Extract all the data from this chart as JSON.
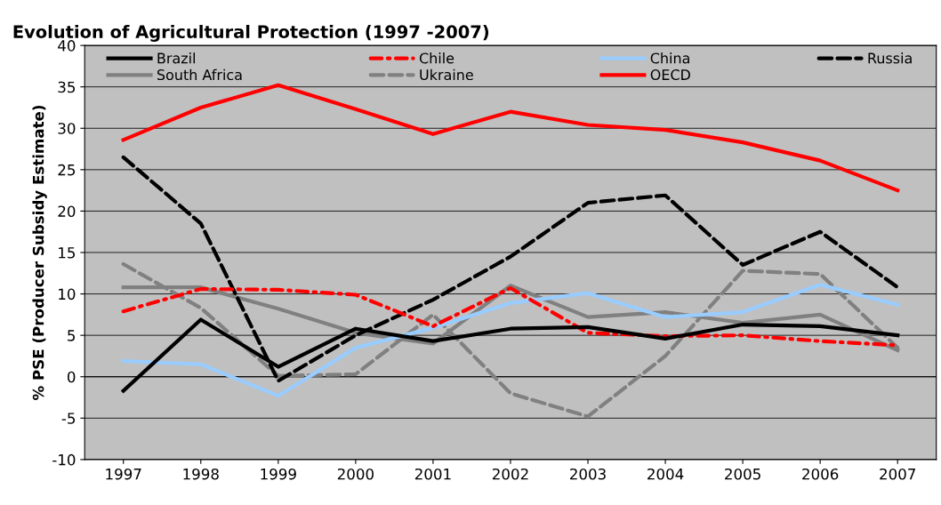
{
  "chart_data": {
    "type": "line",
    "title": "Evolution of Agricultural Protection (1997 -2007)",
    "ylabel": "% PSE (Producer Subsidy Estimate)",
    "categories": [
      "1997",
      "1998",
      "1999",
      "2000",
      "2001",
      "2002",
      "2003",
      "2004",
      "2005",
      "2006",
      "2007"
    ],
    "series": [
      {
        "name": "Brazil",
        "color": "#000000",
        "line_style": "solid",
        "values": [
          -1.7,
          6.9,
          1.2,
          5.8,
          4.3,
          5.8,
          6.0,
          4.6,
          6.3,
          6.1,
          5.0
        ]
      },
      {
        "name": "Chile",
        "color": "#ff0000",
        "line_style": "dashdot",
        "values": [
          7.9,
          10.6,
          10.5,
          9.9,
          6.1,
          10.7,
          5.3,
          4.9,
          5.0,
          4.3,
          3.8
        ]
      },
      {
        "name": "China",
        "color": "#99ccff",
        "line_style": "solid",
        "values": [
          1.9,
          1.5,
          -2.3,
          3.5,
          5.9,
          8.9,
          10.1,
          7.2,
          7.8,
          11.1,
          8.7
        ]
      },
      {
        "name": "Russia",
        "color": "#000000",
        "line_style": "dashed",
        "values": [
          26.5,
          18.5,
          -0.5,
          5.0,
          9.3,
          14.5,
          21.0,
          21.9,
          13.5,
          17.5,
          10.8
        ]
      },
      {
        "name": "South Africa",
        "color": "#808080",
        "line_style": "solid",
        "values": [
          10.8,
          10.8,
          8.2,
          5.3,
          4.0,
          11.0,
          7.2,
          7.8,
          6.5,
          7.5,
          3.2
        ]
      },
      {
        "name": "Ukraine",
        "color": "#808080",
        "line_style": "dashed",
        "values": [
          13.6,
          8.3,
          0.1,
          0.3,
          7.5,
          -2.0,
          -4.8,
          2.5,
          12.8,
          12.4,
          3.5
        ]
      },
      {
        "name": "OECD",
        "color": "#ff0000",
        "line_style": "solid",
        "values": [
          28.6,
          32.5,
          35.2,
          32.3,
          29.3,
          32.0,
          30.4,
          29.8,
          28.3,
          26.1,
          22.5
        ]
      }
    ],
    "ylim": [
      -10,
      40
    ],
    "yticks": [
      -10,
      -5,
      0,
      5,
      10,
      15,
      20,
      25,
      30,
      35,
      40
    ],
    "grid": "y",
    "legend": "top",
    "marker": "none"
  }
}
